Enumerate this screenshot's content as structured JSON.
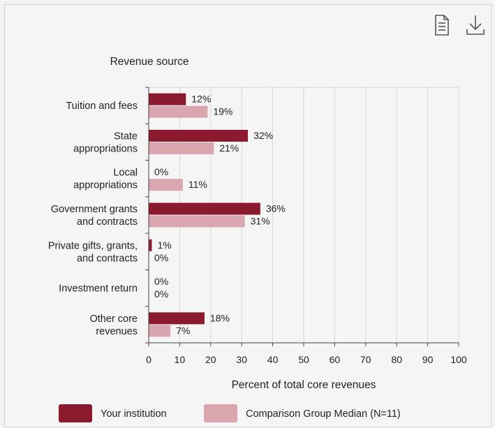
{
  "toolbar": {
    "data_table_icon": "document-icon",
    "download_icon": "download-icon"
  },
  "colors": {
    "your_institution": "#8b1a2e",
    "comparison_median": "#d9a5ae",
    "grid": "#d6d6d6",
    "axis": "#444444",
    "text": "#222222"
  },
  "chart_data": {
    "type": "bar",
    "orientation": "horizontal",
    "category_axis_title": "Revenue source",
    "xlabel": "Percent of total core revenues",
    "xlim": [
      0,
      100
    ],
    "xticks": [
      0,
      10,
      20,
      30,
      40,
      50,
      60,
      70,
      80,
      90,
      100
    ],
    "grid": true,
    "legend_position": "bottom",
    "categories": [
      [
        "Tuition and fees"
      ],
      [
        "State",
        "appropriations"
      ],
      [
        "Local",
        "appropriations"
      ],
      [
        "Government grants",
        "and contracts"
      ],
      [
        "Private gifts, grants,",
        "and contracts"
      ],
      [
        "Investment return"
      ],
      [
        "Other core",
        "revenues"
      ]
    ],
    "series": [
      {
        "name": "Your institution",
        "values": [
          12,
          32,
          0,
          36,
          1,
          0,
          18
        ],
        "labels": [
          "12%",
          "32%",
          "0%",
          "36%",
          "1%",
          "0%",
          "18%"
        ]
      },
      {
        "name": "Comparison Group Median (N=11)",
        "values": [
          19,
          21,
          11,
          31,
          0,
          0,
          7
        ],
        "labels": [
          "19%",
          "21%",
          "11%",
          "31%",
          "0%",
          "0%",
          "7%"
        ]
      }
    ]
  }
}
